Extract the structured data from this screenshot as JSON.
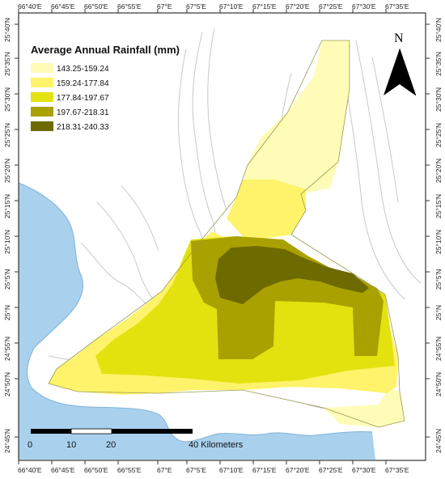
{
  "map": {
    "legend_title": "Average Annual Rainfall (mm)",
    "legend": [
      {
        "label": "143.25-159.24",
        "color": "#fefcb6"
      },
      {
        "label": "159.24-177.84",
        "color": "#fef36a"
      },
      {
        "label": "177.84-197.67",
        "color": "#e3e20f"
      },
      {
        "label": "197.67-218.31",
        "color": "#a9a100"
      },
      {
        "label": "218.31-240.33",
        "color": "#6d6a00"
      }
    ],
    "north_label": "N",
    "scale_labels": [
      "0",
      "10",
      "20",
      "40 Kilometers"
    ],
    "top_ticks": [
      "66°40'E",
      "66°45'E",
      "66°50'E",
      "66°55'E",
      "67°E",
      "67°5'E",
      "67°10'E",
      "67°15'E",
      "67°20'E",
      "67°25'E",
      "67°30'E",
      "67°35'E"
    ],
    "bottom_ticks": [
      "66°40'E",
      "66°45'E",
      "66°50'E",
      "66°55'E",
      "67°E",
      "67°5'E",
      "67°10'E",
      "67°15'E",
      "67°20'E",
      "67°25'E",
      "67°30'E",
      "67°35'E"
    ],
    "left_ticks": [
      "25°40'N",
      "25°35'N",
      "25°30'N",
      "25°25'N",
      "25°20'N",
      "25°15'N",
      "25°10'N",
      "25°5'N",
      "25°N",
      "24°55'N",
      "24°50'N",
      "24°45'N"
    ],
    "right_ticks": [
      "25°40'N",
      "25°35'N",
      "25°30'N",
      "25°25'N",
      "25°20'N",
      "25°15'N",
      "25°10'N",
      "25°5'N",
      "25°N",
      "24°55'N",
      "24°50'N",
      "24°45'N"
    ],
    "colors": {
      "sea": "#a9d1ee",
      "contour": "#c9c9c9",
      "frame": "#333333"
    }
  }
}
